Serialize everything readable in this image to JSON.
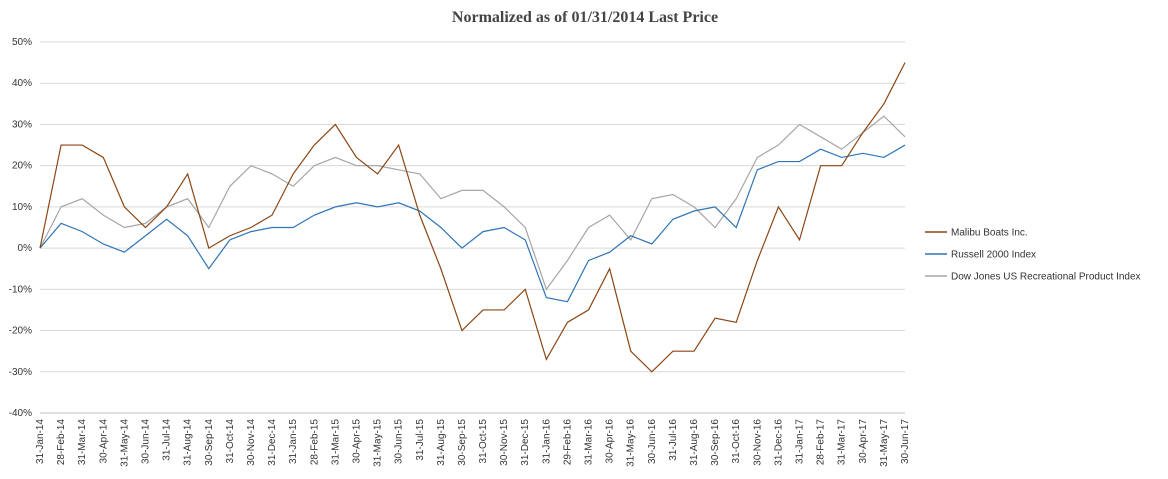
{
  "chart_data": {
    "type": "line",
    "title": "Normalized as of 01/31/2014 Last Price",
    "categories": [
      "31-Jan-14",
      "28-Feb-14",
      "31-Mar-14",
      "30-Apr-14",
      "31-May-14",
      "30-Jun-14",
      "31-Jul-14",
      "31-Aug-14",
      "30-Sep-14",
      "31-Oct-14",
      "30-Nov-14",
      "31-Dec-14",
      "31-Jan-15",
      "28-Feb-15",
      "31-Mar-15",
      "30-Apr-15",
      "31-May-15",
      "30-Jun-15",
      "31-Jul-15",
      "31-Aug-15",
      "30-Sep-15",
      "31-Oct-15",
      "30-Nov-15",
      "31-Dec-15",
      "31-Jan-16",
      "29-Feb-16",
      "31-Mar-16",
      "30-Apr-16",
      "31-May-16",
      "30-Jun-16",
      "31-Jul-16",
      "31-Aug-16",
      "30-Sep-16",
      "31-Oct-16",
      "30-Nov-16",
      "31-Dec-16",
      "31-Jan-17",
      "28-Feb-17",
      "31-Mar-17",
      "30-Apr-17",
      "31-May-17",
      "30-Jun-17"
    ],
    "series": [
      {
        "name": "Malibu Boats Inc.",
        "color": "#8b4513",
        "values": [
          0,
          25,
          25,
          22,
          10,
          5,
          10,
          18,
          0,
          3,
          5,
          8,
          18,
          25,
          30,
          22,
          18,
          25,
          8,
          -5,
          -20,
          -15,
          -15,
          -10,
          -27,
          -18,
          -15,
          -5,
          -25,
          -30,
          -25,
          -25,
          -17,
          -18,
          -3,
          10,
          2,
          20,
          20,
          28,
          35,
          45
        ]
      },
      {
        "name": "Russell 2000 Index",
        "color": "#2e75b6",
        "values": [
          0,
          6,
          4,
          1,
          -1,
          3,
          7,
          3,
          -5,
          2,
          4,
          5,
          5,
          8,
          10,
          11,
          10,
          11,
          9,
          5,
          0,
          4,
          5,
          2,
          -12,
          -13,
          -3,
          -1,
          3,
          1,
          7,
          9,
          10,
          5,
          19,
          21,
          21,
          24,
          22,
          23,
          22,
          25
        ]
      },
      {
        "name": "Dow Jones US Recreational Product Index",
        "color": "#a6a6a6",
        "values": [
          0,
          10,
          12,
          8,
          5,
          6,
          10,
          12,
          5,
          15,
          20,
          18,
          15,
          20,
          22,
          20,
          20,
          19,
          18,
          12,
          14,
          14,
          10,
          5,
          -10,
          -3,
          5,
          8,
          2,
          12,
          13,
          10,
          5,
          12,
          22,
          25,
          30,
          27,
          24,
          28,
          32,
          27
        ]
      }
    ],
    "ylim": [
      -40,
      50
    ],
    "yticks": [
      {
        "value": -40,
        "label": "-40%"
      },
      {
        "value": -30,
        "label": "-30%"
      },
      {
        "value": -20,
        "label": "-20%"
      },
      {
        "value": -10,
        "label": "-10%"
      },
      {
        "value": 0,
        "label": "0%"
      },
      {
        "value": 10,
        "label": "10%"
      },
      {
        "value": 20,
        "label": "20%"
      },
      {
        "value": 30,
        "label": "30%"
      },
      {
        "value": 40,
        "label": "40%"
      },
      {
        "value": 50,
        "label": "50%"
      }
    ],
    "grid": true,
    "legend": "right"
  }
}
